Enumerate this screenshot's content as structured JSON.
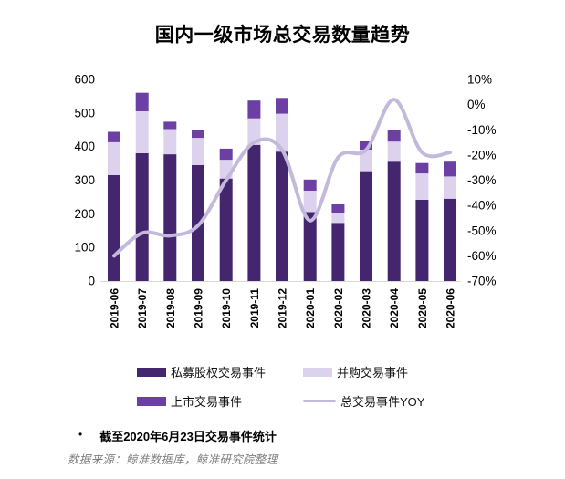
{
  "title": "国内一级市场总交易数量趋势",
  "chart_data": {
    "type": "bar",
    "subtype": "stacked-bar-with-line",
    "title": "国内一级市场总交易数量趋势",
    "categories": [
      "2019-06",
      "2019-07",
      "2019-08",
      "2019-09",
      "2019-10",
      "2019-11",
      "2019-12",
      "2020-01",
      "2020-02",
      "2020-03",
      "2020-04",
      "2020-05",
      "2020-06"
    ],
    "series": [
      {
        "name": "私募股权交易事件",
        "type": "bar",
        "color": "#44266E",
        "values": [
          315,
          380,
          377,
          345,
          305,
          405,
          385,
          205,
          173,
          327,
          355,
          242,
          245
        ]
      },
      {
        "name": "并购交易事件",
        "type": "bar",
        "color": "#DDD2EE",
        "values": [
          98,
          125,
          75,
          81,
          56,
          79,
          113,
          64,
          30,
          64,
          60,
          78,
          66
        ]
      },
      {
        "name": "上市交易事件",
        "type": "bar",
        "color": "#6C3FA4",
        "values": [
          31,
          55,
          22,
          24,
          33,
          53,
          47,
          33,
          25,
          25,
          33,
          31,
          44
        ]
      },
      {
        "name": "总交易事件YOY",
        "type": "line",
        "axis": "right",
        "color": "#C3B9DB",
        "values": [
          -60,
          -51,
          -52,
          -48,
          -30,
          -15,
          -18,
          -46,
          -21,
          -18,
          2,
          -19,
          -19
        ]
      }
    ],
    "left_axis": {
      "min": 0,
      "max": 600,
      "ticks": [
        600,
        500,
        400,
        300,
        200,
        100,
        0
      ]
    },
    "right_axis": {
      "min": -70,
      "max": 10,
      "ticks": [
        "10%",
        "0%",
        "-10%",
        "-20%",
        "-30%",
        "-40%",
        "-50%",
        "-60%",
        "-70%"
      ]
    },
    "grid": false,
    "legend_position": "bottom"
  },
  "legend": {
    "items": [
      {
        "label": "私募股权交易事件",
        "swatch": "bar",
        "color": "#44266E"
      },
      {
        "label": "并购交易事件",
        "swatch": "bar",
        "color": "#DDD2EE"
      },
      {
        "label": "上市交易事件",
        "swatch": "bar",
        "color": "#6C3FA4"
      },
      {
        "label": "总交易事件YOY",
        "swatch": "line",
        "color": "#C3B9DB"
      }
    ]
  },
  "footnote": {
    "bullet": "•",
    "note": "截至2020年6月23日交易事件统计",
    "source": "数据来源：鲸准数据库，鲸准研究院整理"
  },
  "colors": {
    "pe_bar": "#44266E",
    "ma_bar": "#DDD2EE",
    "ipo_bar": "#6C3FA4",
    "yoy_line": "#C3B9DB",
    "axis_line": "#D9D9D9",
    "text": "#000000",
    "source_text": "#7f7f7f"
  }
}
